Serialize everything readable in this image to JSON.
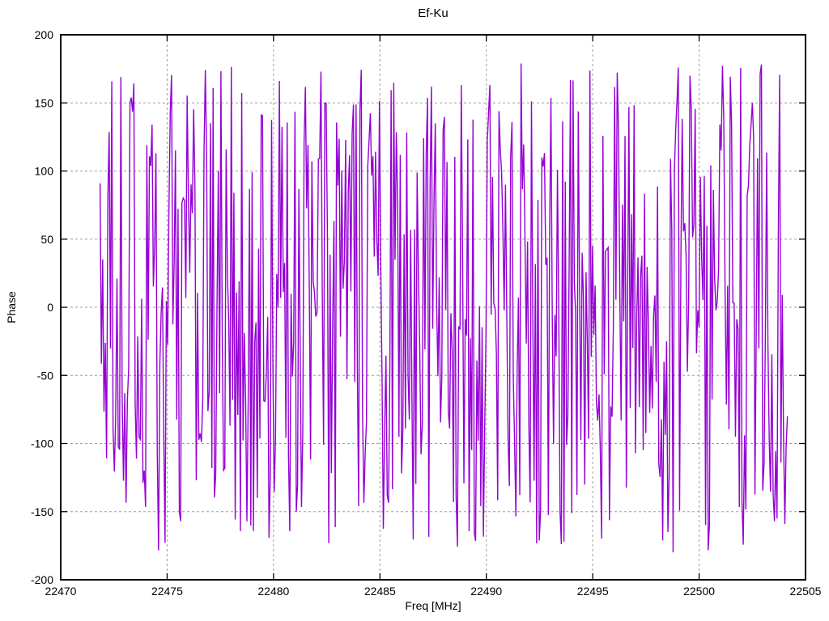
{
  "page": {
    "background": "#ffffff"
  },
  "chart_data": {
    "type": "line",
    "title": "Ef-Ku",
    "xlabel": "Freq [MHz]",
    "ylabel": "Phase",
    "xlim": [
      22470,
      22505
    ],
    "ylim": [
      -200,
      200
    ],
    "x_ticks": [
      22470,
      22475,
      22480,
      22485,
      22490,
      22495,
      22500,
      22505
    ],
    "y_ticks": [
      -200,
      -150,
      -100,
      -50,
      0,
      50,
      100,
      150,
      200
    ],
    "grid": true,
    "legend": false,
    "styles": {
      "line_color": "#9400d3",
      "grid_color": "#9e9e9e",
      "axis_color": "#000000",
      "text_color": "#000000"
    },
    "series": [
      {
        "name": "phase",
        "color": "#9400d3",
        "x_start": 22471.85,
        "x_end": 22504.15,
        "n_points": 530,
        "y_model": "uniform_random_wrapped_phase",
        "y_min": -180,
        "y_max": 180,
        "seed": 20
      }
    ]
  }
}
